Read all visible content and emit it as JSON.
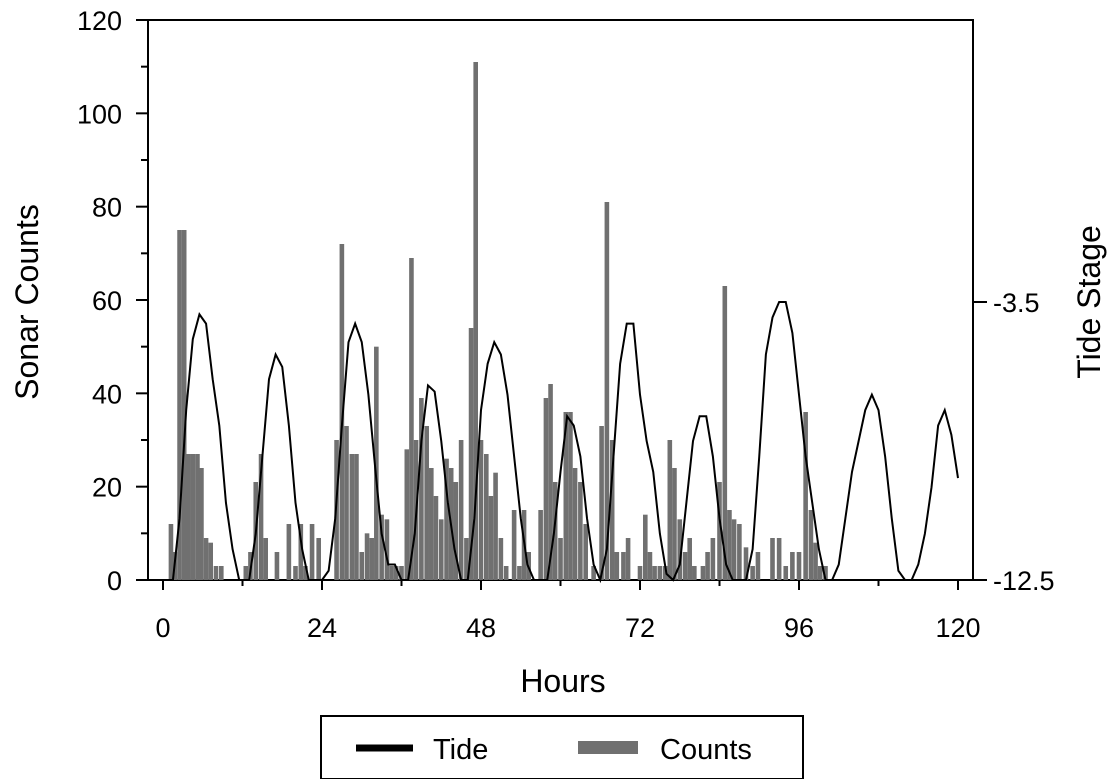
{
  "chart_data": {
    "type": "bar",
    "xlabel": "Hours",
    "ylabel": "Sonar Counts",
    "y2label": "Tide Stage",
    "xlim": [
      0,
      120
    ],
    "ylim": [
      0,
      120
    ],
    "y2lim": [
      -12.5,
      -3.5
    ],
    "x_ticks": [
      "0",
      "24",
      "48",
      "72",
      "96",
      "120"
    ],
    "x_tick_values": [
      0,
      24,
      48,
      72,
      96,
      120
    ],
    "y_ticks": [
      "0",
      "20",
      "40",
      "60",
      "80",
      "100",
      "120"
    ],
    "y_tick_values": [
      0,
      20,
      40,
      60,
      80,
      100,
      120
    ],
    "y2_ticks": [
      "-3.5",
      "-12.5"
    ],
    "y2_tick_values": [
      -3.5,
      -12.5
    ],
    "legend_position": "bottom",
    "grid": false,
    "series": [
      {
        "name": "Counts",
        "kind": "bar",
        "color": "#707070",
        "points": [
          [
            1.2,
            12
          ],
          [
            1.8,
            6
          ],
          [
            2.5,
            75
          ],
          [
            3.2,
            75
          ],
          [
            3.8,
            27
          ],
          [
            4.5,
            27
          ],
          [
            5.2,
            27
          ],
          [
            5.8,
            24
          ],
          [
            6.5,
            9
          ],
          [
            7.2,
            8
          ],
          [
            8.0,
            3
          ],
          [
            8.8,
            3
          ],
          [
            12.5,
            3
          ],
          [
            13.2,
            6
          ],
          [
            14.0,
            21
          ],
          [
            14.8,
            27
          ],
          [
            15.5,
            9
          ],
          [
            17.2,
            6
          ],
          [
            19.0,
            12
          ],
          [
            20.0,
            3
          ],
          [
            20.8,
            12
          ],
          [
            21.5,
            3
          ],
          [
            22.5,
            12
          ],
          [
            23.5,
            9
          ],
          [
            26.2,
            30
          ],
          [
            27.0,
            72
          ],
          [
            27.7,
            33
          ],
          [
            28.5,
            27
          ],
          [
            29.2,
            27
          ],
          [
            30.0,
            6
          ],
          [
            30.8,
            10
          ],
          [
            31.5,
            9
          ],
          [
            32.2,
            50
          ],
          [
            33.0,
            14
          ],
          [
            33.8,
            13
          ],
          [
            34.5,
            3
          ],
          [
            35.2,
            3
          ],
          [
            36.0,
            3
          ],
          [
            36.8,
            28
          ],
          [
            37.5,
            69
          ],
          [
            38.2,
            30
          ],
          [
            39.0,
            39
          ],
          [
            39.8,
            33
          ],
          [
            40.5,
            24
          ],
          [
            41.2,
            18
          ],
          [
            42.0,
            13
          ],
          [
            42.8,
            26
          ],
          [
            43.5,
            24
          ],
          [
            44.2,
            21
          ],
          [
            45.0,
            30
          ],
          [
            45.8,
            9
          ],
          [
            46.5,
            54
          ],
          [
            47.2,
            111
          ],
          [
            48.0,
            30
          ],
          [
            48.8,
            27
          ],
          [
            49.5,
            18
          ],
          [
            50.2,
            23
          ],
          [
            51.0,
            9
          ],
          [
            51.8,
            3
          ],
          [
            53.0,
            15
          ],
          [
            53.8,
            3
          ],
          [
            54.5,
            15
          ],
          [
            55.2,
            6
          ],
          [
            57.0,
            15
          ],
          [
            57.8,
            39
          ],
          [
            58.5,
            42
          ],
          [
            59.2,
            21
          ],
          [
            60.0,
            9
          ],
          [
            60.8,
            36
          ],
          [
            61.5,
            36
          ],
          [
            62.2,
            24
          ],
          [
            63.0,
            21
          ],
          [
            63.8,
            12
          ],
          [
            65.0,
            3
          ],
          [
            66.2,
            33
          ],
          [
            67.0,
            81
          ],
          [
            67.8,
            30
          ],
          [
            68.5,
            6
          ],
          [
            69.5,
            6
          ],
          [
            70.2,
            9
          ],
          [
            72.0,
            3
          ],
          [
            72.8,
            14
          ],
          [
            73.5,
            6
          ],
          [
            74.2,
            3
          ],
          [
            75.0,
            3
          ],
          [
            75.8,
            3
          ],
          [
            76.5,
            30
          ],
          [
            77.2,
            24
          ],
          [
            78.0,
            13
          ],
          [
            78.8,
            6
          ],
          [
            79.5,
            9
          ],
          [
            80.2,
            3
          ],
          [
            81.5,
            3
          ],
          [
            82.2,
            6
          ],
          [
            83.0,
            9
          ],
          [
            84.0,
            21
          ],
          [
            84.8,
            63
          ],
          [
            85.5,
            15
          ],
          [
            86.2,
            13
          ],
          [
            87.0,
            12
          ],
          [
            88.0,
            7
          ],
          [
            89.0,
            3
          ],
          [
            89.8,
            6
          ],
          [
            90.5,
            0
          ],
          [
            92.0,
            9
          ],
          [
            93.0,
            9
          ],
          [
            94.0,
            3
          ],
          [
            95.0,
            6
          ],
          [
            96.0,
            6
          ],
          [
            97.0,
            36
          ],
          [
            97.8,
            15
          ],
          [
            98.5,
            8
          ],
          [
            99.2,
            3
          ],
          [
            100.0,
            3
          ]
        ]
      },
      {
        "name": "Tide",
        "kind": "line",
        "color": "#000000",
        "points": [
          [
            0,
            -12.5
          ],
          [
            1.5,
            -12.5
          ],
          [
            2.5,
            -10.5
          ],
          [
            3.5,
            -7.0
          ],
          [
            4.5,
            -4.7
          ],
          [
            5.5,
            -3.9
          ],
          [
            6.5,
            -4.2
          ],
          [
            7.5,
            -6.0
          ],
          [
            8.5,
            -7.5
          ],
          [
            9.5,
            -10.0
          ],
          [
            10.5,
            -11.5
          ],
          [
            11.5,
            -12.5
          ],
          [
            13.0,
            -12.5
          ],
          [
            14.0,
            -11.0
          ],
          [
            15.0,
            -8.5
          ],
          [
            16.0,
            -6.0
          ],
          [
            17.0,
            -5.2
          ],
          [
            18.0,
            -5.6
          ],
          [
            19.0,
            -7.5
          ],
          [
            20.0,
            -10.0
          ],
          [
            21.0,
            -11.5
          ],
          [
            22.0,
            -12.5
          ],
          [
            24.0,
            -12.5
          ],
          [
            25.0,
            -12.2
          ],
          [
            26.0,
            -10.5
          ],
          [
            27.0,
            -7.5
          ],
          [
            28.0,
            -4.8
          ],
          [
            29.0,
            -4.2
          ],
          [
            30.0,
            -4.8
          ],
          [
            31.0,
            -6.5
          ],
          [
            32.0,
            -8.8
          ],
          [
            33.0,
            -11.0
          ],
          [
            34.0,
            -12.0
          ],
          [
            35.0,
            -12.0
          ],
          [
            36.0,
            -12.5
          ],
          [
            37.0,
            -12.5
          ],
          [
            38.0,
            -11.0
          ],
          [
            39.0,
            -8.0
          ],
          [
            40.0,
            -6.2
          ],
          [
            41.0,
            -6.4
          ],
          [
            42.0,
            -8.0
          ],
          [
            43.0,
            -10.0
          ],
          [
            44.0,
            -11.5
          ],
          [
            45.0,
            -12.5
          ],
          [
            46.0,
            -12.5
          ],
          [
            47.0,
            -10.5
          ],
          [
            48.0,
            -7.0
          ],
          [
            49.0,
            -5.5
          ],
          [
            50.0,
            -4.8
          ],
          [
            51.0,
            -5.2
          ],
          [
            52.0,
            -6.5
          ],
          [
            53.0,
            -8.5
          ],
          [
            54.0,
            -10.5
          ],
          [
            55.0,
            -12.0
          ],
          [
            56.0,
            -12.5
          ],
          [
            58.0,
            -12.5
          ],
          [
            59.0,
            -11.0
          ],
          [
            60.0,
            -9.0
          ],
          [
            61.0,
            -7.2
          ],
          [
            62.0,
            -7.5
          ],
          [
            63.0,
            -8.5
          ],
          [
            64.0,
            -10.5
          ],
          [
            65.0,
            -12.0
          ],
          [
            66.0,
            -12.5
          ],
          [
            67.0,
            -11.5
          ],
          [
            68.0,
            -8.5
          ],
          [
            69.0,
            -5.5
          ],
          [
            70.0,
            -4.2
          ],
          [
            71.0,
            -4.2
          ],
          [
            72.0,
            -6.5
          ],
          [
            73.0,
            -8.0
          ],
          [
            74.0,
            -9.0
          ],
          [
            75.0,
            -11.0
          ],
          [
            76.0,
            -12.3
          ],
          [
            77.0,
            -12.5
          ],
          [
            78.0,
            -12.0
          ],
          [
            79.0,
            -10.0
          ],
          [
            80.0,
            -8.0
          ],
          [
            81.0,
            -7.2
          ],
          [
            82.0,
            -7.2
          ],
          [
            83.0,
            -8.5
          ],
          [
            84.0,
            -10.5
          ],
          [
            85.0,
            -12.0
          ],
          [
            86.0,
            -12.5
          ],
          [
            88.0,
            -12.5
          ],
          [
            89.0,
            -11.5
          ],
          [
            90.0,
            -8.5
          ],
          [
            91.0,
            -5.2
          ],
          [
            92.0,
            -4.0
          ],
          [
            93.0,
            -3.5
          ],
          [
            94.0,
            -3.5
          ],
          [
            95.0,
            -4.5
          ],
          [
            96.0,
            -6.5
          ],
          [
            97.0,
            -8.5
          ],
          [
            98.0,
            -10.0
          ],
          [
            99.0,
            -11.5
          ],
          [
            100.0,
            -12.5
          ],
          [
            101.0,
            -12.5
          ],
          [
            102.0,
            -12.0
          ],
          [
            103.0,
            -10.5
          ],
          [
            104.0,
            -9.0
          ],
          [
            105.0,
            -8.0
          ],
          [
            106.0,
            -7.0
          ],
          [
            107.0,
            -6.5
          ],
          [
            108.0,
            -7.0
          ],
          [
            109.0,
            -8.5
          ],
          [
            110.0,
            -10.5
          ],
          [
            111.0,
            -12.2
          ],
          [
            112.0,
            -12.5
          ],
          [
            113.0,
            -12.5
          ],
          [
            114.0,
            -12.0
          ],
          [
            115.0,
            -11.0
          ],
          [
            116.0,
            -9.5
          ],
          [
            117.0,
            -7.5
          ],
          [
            118.0,
            -7.0
          ],
          [
            119.0,
            -7.8
          ],
          [
            120.0,
            -9.2
          ]
        ]
      }
    ]
  }
}
